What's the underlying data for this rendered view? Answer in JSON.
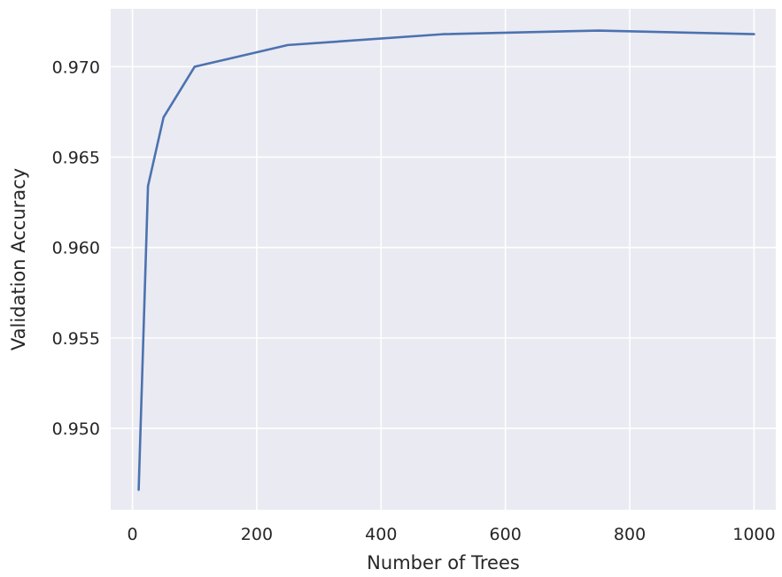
{
  "chart_data": {
    "type": "line",
    "title": "",
    "xlabel": "Number of Trees",
    "ylabel": "Validation Accuracy",
    "xlim": [
      -35,
      1035
    ],
    "ylim": [
      0.9455,
      0.9732
    ],
    "xticks": [
      0,
      200,
      400,
      600,
      800,
      1000
    ],
    "xtick_labels": [
      "0",
      "200",
      "400",
      "600",
      "800",
      "1000"
    ],
    "yticks": [
      0.95,
      0.955,
      0.96,
      0.965,
      0.97
    ],
    "ytick_labels": [
      "0.950",
      "0.955",
      "0.960",
      "0.965",
      "0.970"
    ],
    "grid": true,
    "legend": "none",
    "series": [
      {
        "color": "#4c72b0",
        "x": [
          10,
          25,
          50,
          100,
          250,
          500,
          750,
          1000
        ],
        "y": [
          0.9466,
          0.9634,
          0.9672,
          0.97,
          0.9712,
          0.9718,
          0.972,
          0.9718
        ]
      }
    ]
  },
  "style": {
    "plot_background": "#eaeaf2",
    "grid_color": "#ffffff"
  }
}
